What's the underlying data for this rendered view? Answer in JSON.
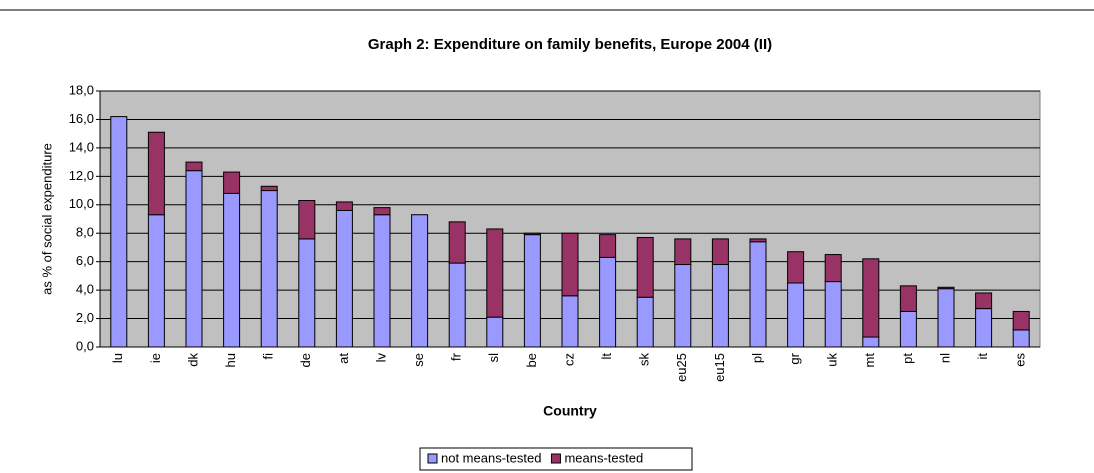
{
  "chart_data": {
    "type": "stacked-bar",
    "title": "Graph 2: Expenditure on family benefits, Europe 2004 (II)",
    "x_label": "Country",
    "y_label": "as % of social expenditure",
    "categories": [
      "lu",
      "ie",
      "dk",
      "hu",
      "fi",
      "de",
      "at",
      "lv",
      "se",
      "fr",
      "sl",
      "be",
      "cz",
      "lt",
      "sk",
      "eu25",
      "eu15",
      "pl",
      "gr",
      "uk",
      "mt",
      "pt",
      "nl",
      "it",
      "es"
    ],
    "series": [
      {
        "name": "not means-tested",
        "color": "#9999ff",
        "values": [
          16.2,
          9.3,
          12.4,
          10.8,
          11.0,
          7.6,
          9.6,
          9.3,
          9.3,
          5.9,
          2.1,
          7.9,
          3.6,
          6.3,
          3.5,
          5.8,
          5.8,
          7.4,
          4.5,
          4.6,
          0.7,
          2.5,
          4.1,
          2.7,
          1.2
        ]
      },
      {
        "name": "means-tested",
        "color": "#993366",
        "values": [
          0,
          5.8,
          0.6,
          1.5,
          0.3,
          2.7,
          0.6,
          0.5,
          0,
          2.9,
          6.2,
          0.1,
          4.4,
          1.6,
          4.2,
          1.8,
          1.8,
          0.2,
          2.2,
          1.9,
          5.5,
          1.8,
          0.1,
          1.1,
          1.3
        ]
      }
    ],
    "ylim": [
      0,
      18
    ],
    "yticks": [
      {
        "value": 0,
        "label": "0,0"
      },
      {
        "value": 2,
        "label": "2,0"
      },
      {
        "value": 4,
        "label": "4,0"
      },
      {
        "value": 6,
        "label": "6,0"
      },
      {
        "value": 8,
        "label": "8,0"
      },
      {
        "value": 10,
        "label": "10,0"
      },
      {
        "value": 12,
        "label": "12,0"
      },
      {
        "value": 14,
        "label": "14,0"
      },
      {
        "value": 16,
        "label": "16,0"
      },
      {
        "value": 18,
        "label": "18,0"
      }
    ],
    "grid": true,
    "legend": "bottom"
  }
}
